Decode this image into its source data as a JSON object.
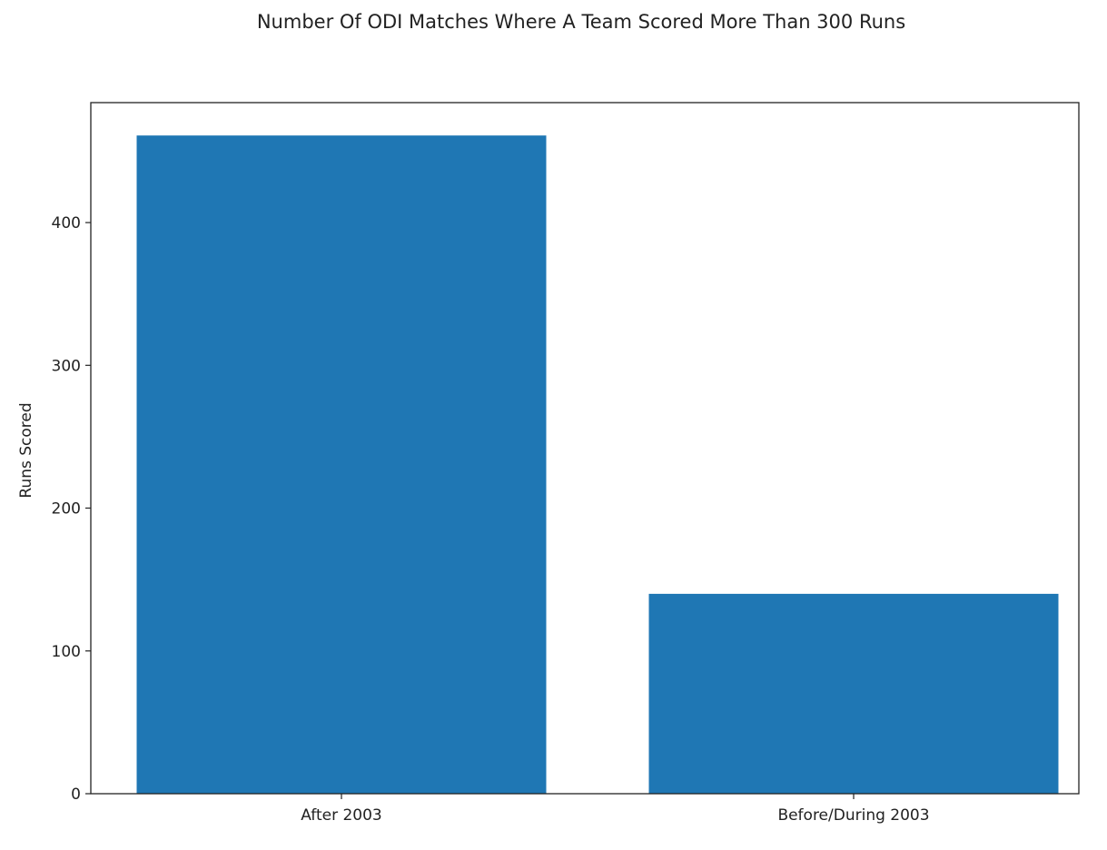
{
  "chart_data": {
    "type": "bar",
    "title": "Number Of ODI Matches Where A Team Scored More Than 300 Runs",
    "xlabel": "",
    "ylabel": "Runs Scored",
    "categories": [
      "After 2003",
      "Before/During 2003"
    ],
    "values": [
      461,
      140
    ],
    "ylim": [
      0,
      484
    ],
    "yticks": [
      0,
      100,
      200,
      300,
      400
    ],
    "bar_color": "#1f77b4",
    "grid": false,
    "legend": "none"
  }
}
